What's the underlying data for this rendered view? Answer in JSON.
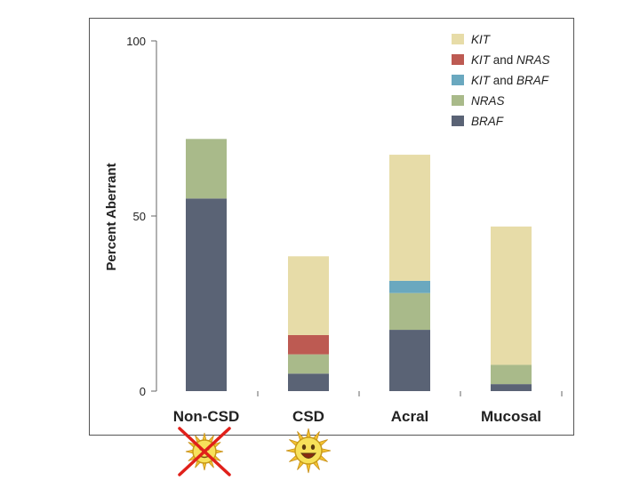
{
  "chart_data": {
    "type": "bar",
    "stacked": true,
    "title": "",
    "xlabel": "",
    "ylabel": "Percent Aberrant",
    "ylim": [
      0,
      100
    ],
    "yticks": [
      0,
      50,
      100
    ],
    "grid": false,
    "legend_position": "top-right",
    "categories": [
      "Non-CSD",
      "CSD",
      "Acral",
      "Mucosal"
    ],
    "series": [
      {
        "name": "BRAF",
        "color": "#5a6375",
        "values": [
          55,
          5,
          17.5,
          2
        ]
      },
      {
        "name": "NRAS",
        "color": "#a9ba8a",
        "values": [
          17,
          5.5,
          10.5,
          5.5
        ]
      },
      {
        "name": "KIT and BRAF",
        "color": "#6aa8bf",
        "values": [
          0,
          0,
          3.5,
          0
        ]
      },
      {
        "name": "KIT and NRAS",
        "color": "#bd5a52",
        "values": [
          0,
          5.5,
          0,
          0
        ]
      },
      {
        "name": "KIT",
        "color": "#e7dca8",
        "values": [
          0,
          22.5,
          36,
          39.5
        ]
      }
    ],
    "legend": [
      {
        "series": "KIT",
        "parts": [
          {
            "text": "KIT",
            "italic": true
          }
        ]
      },
      {
        "series": "KIT and NRAS",
        "parts": [
          {
            "text": "KIT",
            "italic": true
          },
          {
            "text": " and ",
            "italic": false
          },
          {
            "text": "NRAS",
            "italic": true
          }
        ]
      },
      {
        "series": "KIT and BRAF",
        "parts": [
          {
            "text": "KIT",
            "italic": true
          },
          {
            "text": " and ",
            "italic": false
          },
          {
            "text": "BRAF",
            "italic": true
          }
        ]
      },
      {
        "series": "NRAS",
        "parts": [
          {
            "text": "NRAS",
            "italic": true
          }
        ]
      },
      {
        "series": "BRAF",
        "parts": [
          {
            "text": "BRAF",
            "italic": true
          }
        ]
      }
    ]
  },
  "icons": {
    "non_csd": "sun-crossed-out-icon",
    "csd": "smiling-sun-icon"
  }
}
